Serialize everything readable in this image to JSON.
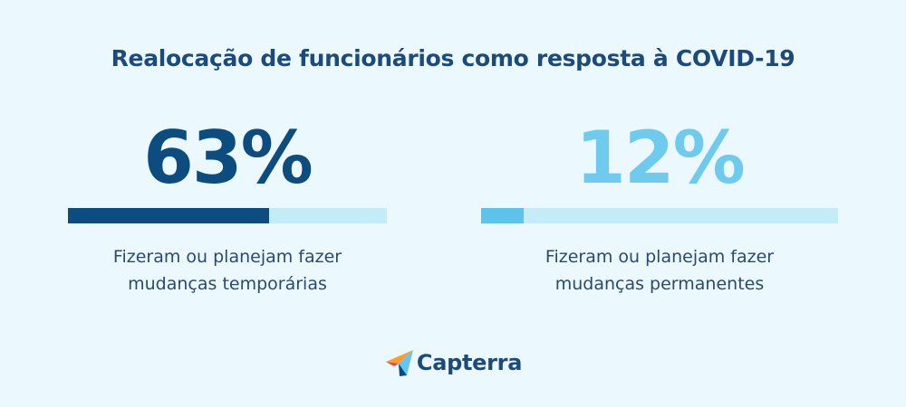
{
  "title": "Realocação de funcionários como resposta à COVID-19",
  "chart_data": {
    "type": "bar",
    "stats": [
      {
        "value": 63,
        "display": "63%",
        "caption_line1": "Fizeram ou planejam fazer",
        "caption_line2": "mudanças temporárias",
        "fill_color": "#0c4c7f",
        "track_color": "#c3ebf8",
        "text_color": "#0c4c7f"
      },
      {
        "value": 12,
        "display": "12%",
        "caption_line1": "Fizeram ou planejam fazer",
        "caption_line2": "mudanças permanentes",
        "fill_color": "#5dc3ea",
        "track_color": "#c3ebf8",
        "text_color": "#6fcbee"
      }
    ],
    "ylim": [
      0,
      100
    ]
  },
  "brand": {
    "name": "Capterra",
    "icon": "capterra-logo-icon"
  }
}
